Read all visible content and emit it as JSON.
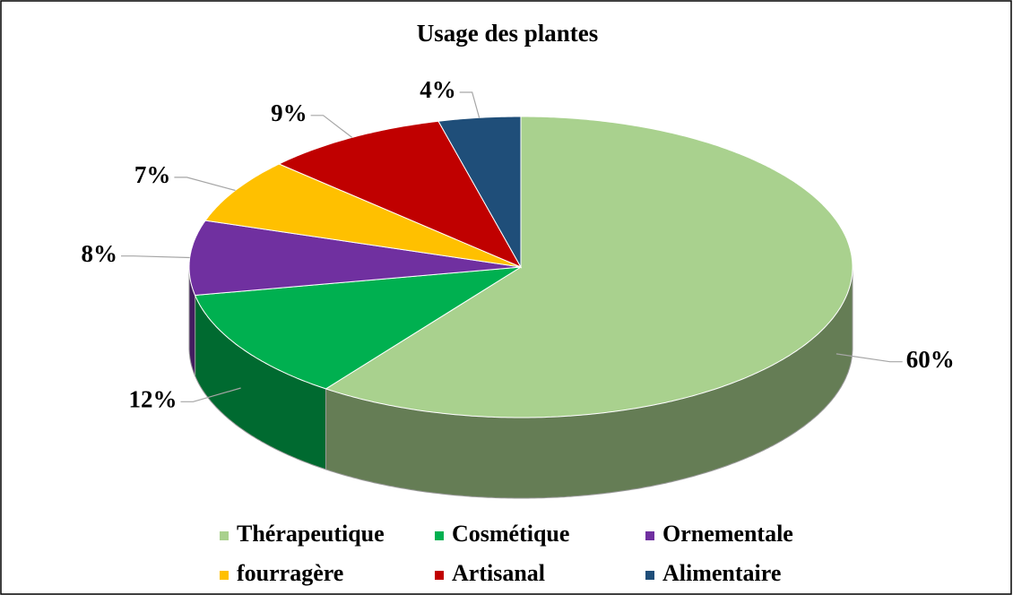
{
  "chart_data": {
    "type": "pie",
    "title": "Usage des plantes",
    "categories": [
      "Thérapeutique",
      "Cosmétique",
      "Ornementale",
      "fourragère",
      "Artisanal",
      "Alimentaire"
    ],
    "values": [
      60,
      12,
      8,
      7,
      9,
      4
    ],
    "value_labels": [
      "60%",
      "12%",
      "8%",
      "7%",
      "9%",
      "4%"
    ],
    "colors": [
      "#a9d18e",
      "#00b050",
      "#7030a0",
      "#ffc000",
      "#c00000",
      "#1f4e79"
    ],
    "legend": "bottom"
  }
}
